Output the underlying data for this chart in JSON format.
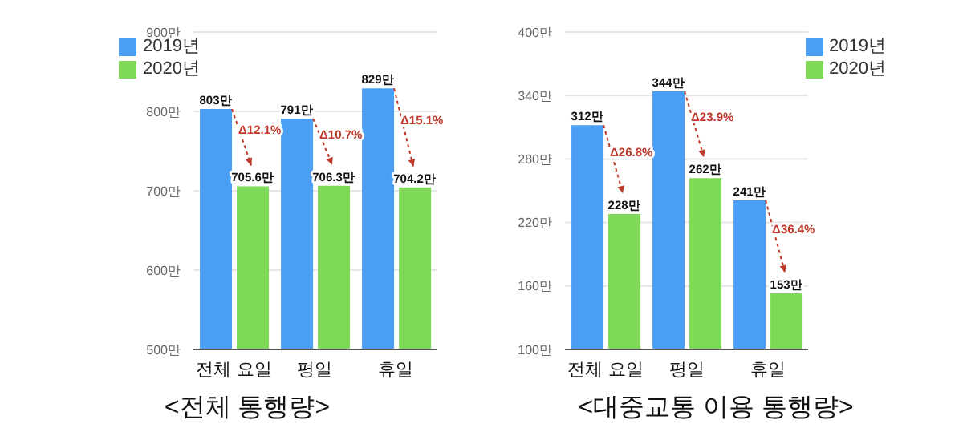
{
  "chart_data": [
    {
      "type": "bar",
      "title": "<전체 통행량>",
      "categories": [
        "전체 요일",
        "평일",
        "휴일"
      ],
      "series": [
        {
          "name": "2019년",
          "color": "#4a9ff5",
          "values": [
            803,
            791,
            829
          ],
          "value_labels": [
            "803만",
            "791만",
            "829만"
          ]
        },
        {
          "name": "2020년",
          "color": "#7ed957",
          "values": [
            705.6,
            706.3,
            704.2
          ],
          "value_labels": [
            "705.6만",
            "706.3만",
            "704.2만"
          ]
        }
      ],
      "ylim": [
        500,
        900
      ],
      "yticks": [
        {
          "value": 500,
          "label": "500만"
        },
        {
          "value": 600,
          "label": "600만"
        },
        {
          "value": 700,
          "label": "700만"
        },
        {
          "value": 800,
          "label": "800만"
        },
        {
          "value": 900,
          "label": "900만"
        }
      ],
      "grid": "y",
      "legend": "top left",
      "annotations": [
        "Δ12.1%",
        "Δ10.7%",
        "Δ15.1%"
      ]
    },
    {
      "type": "bar",
      "title": "<대중교통 이용 통행량>",
      "categories": [
        "전체 요일",
        "평일",
        "휴일"
      ],
      "series": [
        {
          "name": "2019년",
          "color": "#4a9ff5",
          "values": [
            312,
            344,
            241
          ],
          "value_labels": [
            "312만",
            "344만",
            "241만"
          ]
        },
        {
          "name": "2020년",
          "color": "#7ed957",
          "values": [
            228,
            262,
            153
          ],
          "value_labels": [
            "228만",
            "262만",
            "153만"
          ]
        }
      ],
      "ylim": [
        100,
        400
      ],
      "yticks": [
        {
          "value": 100,
          "label": "100만"
        },
        {
          "value": 160,
          "label": "160만"
        },
        {
          "value": 220,
          "label": "220만"
        },
        {
          "value": 280,
          "label": "280만"
        },
        {
          "value": 340,
          "label": "340만"
        },
        {
          "value": 400,
          "label": "400만"
        }
      ],
      "grid": "y",
      "legend": "top right",
      "annotations": [
        "Δ26.8%",
        "Δ23.9%",
        "Δ36.4%"
      ]
    }
  ]
}
